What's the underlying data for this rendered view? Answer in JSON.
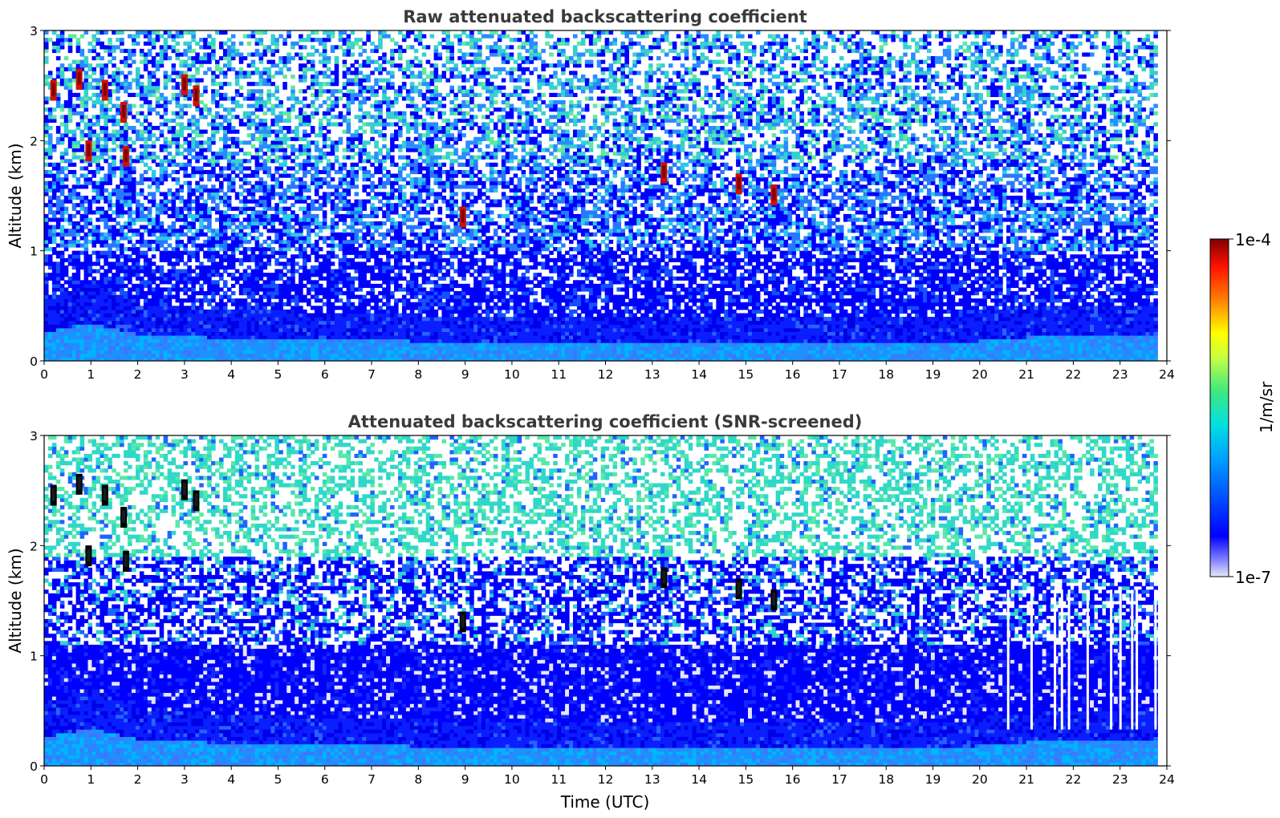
{
  "chart_data": [
    {
      "type": "heatmap",
      "title": "Raw attenuated backscattering coefficient",
      "xlabel": "",
      "ylabel": "Altitude (km)",
      "xlim": [
        0,
        24
      ],
      "ylim": [
        0,
        3
      ],
      "x_ticks": [
        "0",
        "1",
        "2",
        "3",
        "4",
        "5",
        "6",
        "7",
        "8",
        "9",
        "10",
        "11",
        "12",
        "13",
        "14",
        "15",
        "16",
        "17",
        "18",
        "19",
        "20",
        "21",
        "22",
        "23",
        "24"
      ],
      "y_ticks": [
        "0",
        "1",
        "2",
        "3"
      ],
      "data_extent_hours": [
        0,
        23.8
      ],
      "boundary_layer": [
        {
          "time": 0,
          "top_km": 0.45
        },
        {
          "time": 1,
          "top_km": 0.6
        },
        {
          "time": 2,
          "top_km": 0.4
        },
        {
          "time": 4,
          "top_km": 0.35
        },
        {
          "time": 8,
          "top_km": 0.3
        },
        {
          "time": 12,
          "top_km": 0.3
        },
        {
          "time": 16,
          "top_km": 0.3
        },
        {
          "time": 19.8,
          "top_km": 0.28
        },
        {
          "time": 20,
          "top_km": 0.33
        },
        {
          "time": 22,
          "top_km": 0.4
        },
        {
          "time": 23.8,
          "top_km": 0.38
        }
      ],
      "strong_features": [
        {
          "time": 0.2,
          "alt_km": 2.45
        },
        {
          "time": 0.75,
          "alt_km": 2.55
        },
        {
          "time": 0.95,
          "alt_km": 1.9
        },
        {
          "time": 1.3,
          "alt_km": 2.45
        },
        {
          "time": 1.7,
          "alt_km": 2.25
        },
        {
          "time": 1.75,
          "alt_km": 1.85
        },
        {
          "time": 3.0,
          "alt_km": 2.5
        },
        {
          "time": 3.25,
          "alt_km": 2.4
        },
        {
          "time": 8.95,
          "alt_km": 1.3
        },
        {
          "time": 13.25,
          "alt_km": 1.7
        },
        {
          "time": 14.85,
          "alt_km": 1.6
        },
        {
          "time": 15.6,
          "alt_km": 1.5
        }
      ]
    },
    {
      "type": "heatmap",
      "title": "Attenuated backscattering coefficient (SNR-screened)",
      "xlabel": "Time (UTC)",
      "ylabel": "Altitude (km)",
      "xlim": [
        0,
        24
      ],
      "ylim": [
        0,
        3
      ],
      "x_ticks": [
        "0",
        "1",
        "2",
        "3",
        "4",
        "5",
        "6",
        "7",
        "8",
        "9",
        "10",
        "11",
        "12",
        "13",
        "14",
        "15",
        "16",
        "17",
        "18",
        "19",
        "20",
        "21",
        "22",
        "23",
        "24"
      ],
      "y_ticks": [
        "0",
        "1",
        "2",
        "3"
      ],
      "data_extent_hours": [
        0,
        23.8
      ],
      "screened_gap_hours": [
        20.6,
        21.1,
        21.6,
        21.75,
        21.9,
        22.3,
        22.8,
        23.0,
        23.25,
        23.35,
        23.75
      ]
    }
  ],
  "colorbar": {
    "min_label": "1e-7",
    "max_label": "1e-4",
    "label": "1/m/sr",
    "scale": "log",
    "colormap": "jet",
    "under_color": "#ffffff"
  }
}
